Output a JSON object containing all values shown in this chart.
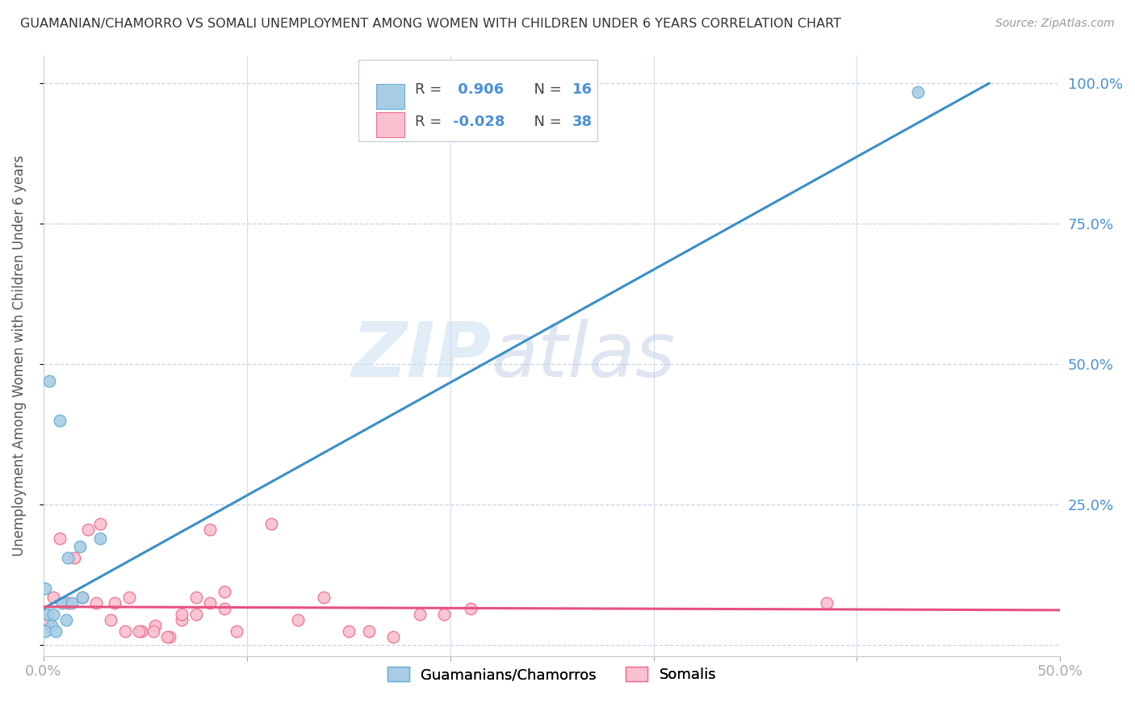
{
  "title": "GUAMANIAN/CHAMORRO VS SOMALI UNEMPLOYMENT AMONG WOMEN WITH CHILDREN UNDER 6 YEARS CORRELATION CHART",
  "source": "Source: ZipAtlas.com",
  "ylabel": "Unemployment Among Women with Children Under 6 years",
  "xlim": [
    0,
    0.5
  ],
  "ylim": [
    -0.02,
    1.05
  ],
  "watermark_zip": "ZIP",
  "watermark_atlas": "atlas",
  "legend_r1": "R =  0.906",
  "legend_n1": "N = 16",
  "legend_r2": "R = -0.028",
  "legend_n2": "N = 38",
  "legend_label1": "Guamanians/Chamorros",
  "legend_label2": "Somalis",
  "blue_color": "#a8cce4",
  "blue_edge_color": "#6aafd6",
  "pink_color": "#f9c0cf",
  "pink_edge_color": "#f07090",
  "blue_line_color": "#3a8fc8",
  "pink_line_color": "#e85080",
  "background_color": "#ffffff",
  "grid_color": "#c8d4e8",
  "blue_scatter_x": [
    0.003,
    0.008,
    0.012,
    0.018,
    0.002,
    0.001,
    0.009,
    0.005,
    0.014,
    0.019,
    0.004,
    0.011,
    0.001,
    0.006,
    0.43,
    0.028
  ],
  "blue_scatter_y": [
    0.47,
    0.4,
    0.155,
    0.175,
    0.055,
    0.1,
    0.075,
    0.055,
    0.075,
    0.085,
    0.035,
    0.045,
    0.025,
    0.025,
    0.985,
    0.19
  ],
  "pink_scatter_x": [
    0.002,
    0.008,
    0.015,
    0.022,
    0.028,
    0.035,
    0.042,
    0.048,
    0.055,
    0.062,
    0.068,
    0.075,
    0.082,
    0.089,
    0.095,
    0.385,
    0.005,
    0.012,
    0.019,
    0.026,
    0.033,
    0.04,
    0.047,
    0.054,
    0.061,
    0.068,
    0.075,
    0.082,
    0.089,
    0.112,
    0.125,
    0.138,
    0.15,
    0.16,
    0.172,
    0.185,
    0.197,
    0.21
  ],
  "pink_scatter_y": [
    0.045,
    0.19,
    0.155,
    0.205,
    0.215,
    0.075,
    0.085,
    0.025,
    0.035,
    0.015,
    0.045,
    0.055,
    0.205,
    0.065,
    0.025,
    0.075,
    0.085,
    0.075,
    0.085,
    0.075,
    0.045,
    0.025,
    0.025,
    0.025,
    0.015,
    0.055,
    0.085,
    0.075,
    0.095,
    0.215,
    0.045,
    0.085,
    0.025,
    0.025,
    0.015,
    0.055,
    0.055,
    0.065
  ],
  "blue_line_x": [
    0.0,
    0.465
  ],
  "blue_line_y": [
    0.065,
    1.0
  ],
  "pink_line_x": [
    0.0,
    0.5
  ],
  "pink_line_y": [
    0.068,
    0.062
  ],
  "marker_size": 110
}
